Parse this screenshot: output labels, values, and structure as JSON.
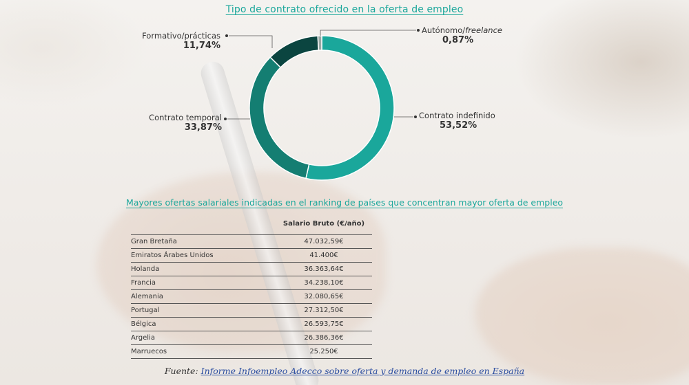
{
  "chart_data": [
    {
      "type": "pie",
      "donut": true,
      "title": "Tipo de contrato ofrecido en la oferta de empleo",
      "slices": [
        {
          "name": "Contrato indefinido",
          "value": 53.52,
          "label": "53,52%",
          "color": "#1aa79b"
        },
        {
          "name": "Contrato temporal",
          "value": 33.87,
          "label": "33,87%",
          "color": "#147e72"
        },
        {
          "name": "Formativo/prácticas",
          "value": 11.74,
          "label": "11,74%",
          "color": "#0b4540"
        },
        {
          "name_prefix": "Autónomo/",
          "name_italic": "freelance",
          "value": 0.87,
          "label": "0,87%",
          "color": "#9aa7a3"
        }
      ]
    },
    {
      "type": "table",
      "title": "Mayores ofertas salariales indicadas en el ranking de países que concentran mayor oferta de empleo",
      "columns": [
        "",
        "Salario Bruto (€/año)"
      ],
      "rows": [
        {
          "country": "Gran Bretaña",
          "salary": "47.032,59€"
        },
        {
          "country": "Emiratos Árabes Unidos",
          "salary": "41.400€"
        },
        {
          "country": "Holanda",
          "salary": "36.363,64€"
        },
        {
          "country": "Francia",
          "salary": "34.238,10€"
        },
        {
          "country": "Alemania",
          "salary": "32.080,65€"
        },
        {
          "country": "Portugal",
          "salary": "27.312,50€"
        },
        {
          "country": "Bélgica",
          "salary": "26.593,75€"
        },
        {
          "country": "Argelia",
          "salary": "26.386,36€"
        },
        {
          "country": "Marruecos",
          "salary": "25.250€"
        }
      ]
    }
  ],
  "source": {
    "prefix": "Fuente: ",
    "link_text": "Informe Infoempleo Adecco sobre oferta y demanda de empleo en España"
  }
}
